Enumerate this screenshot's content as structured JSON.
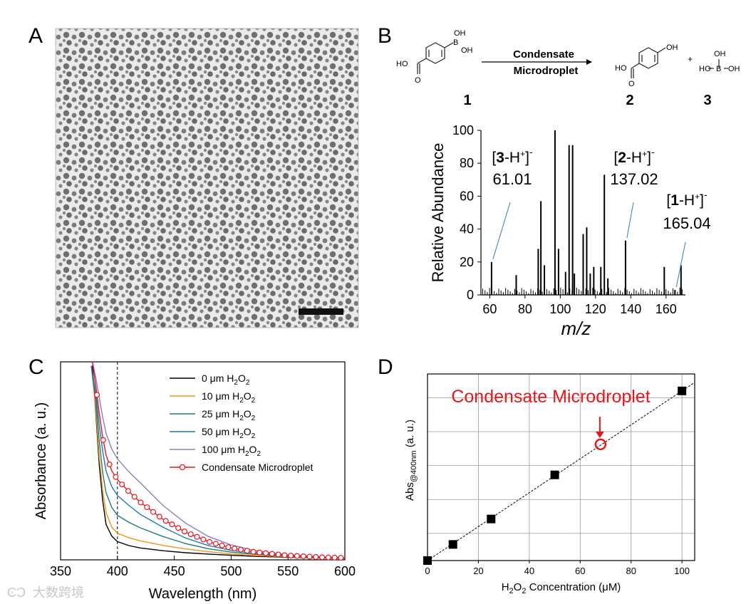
{
  "panel_labels": {
    "a": "A",
    "b": "B",
    "c": "C",
    "d": "D"
  },
  "panel_b": {
    "arrow_label_line1": "Condensate",
    "arrow_label_line2": "Microdroplet",
    "compound_numbers": [
      "1",
      "2",
      "3"
    ],
    "plus": "+",
    "structure_text": {
      "oh": "OH",
      "b": "B",
      "ho": "HO",
      "o": "O"
    }
  },
  "watermark": "大数跨境",
  "chart_data": [
    {
      "panel": "B",
      "type": "bar",
      "title": "",
      "xlabel": "m/z",
      "ylabel": "Relative Abundance",
      "xlim": [
        55,
        171
      ],
      "ylim": [
        0,
        100
      ],
      "xticks": [
        60,
        80,
        100,
        120,
        140,
        160
      ],
      "yticks": [
        0,
        20,
        40,
        60,
        80,
        100
      ],
      "peaks": [
        {
          "mz": 61.01,
          "value": 20
        },
        {
          "mz": 75,
          "value": 12
        },
        {
          "mz": 87.5,
          "value": 28
        },
        {
          "mz": 89,
          "value": 57
        },
        {
          "mz": 91,
          "value": 18
        },
        {
          "mz": 97,
          "value": 100
        },
        {
          "mz": 99,
          "value": 28
        },
        {
          "mz": 103,
          "value": 14
        },
        {
          "mz": 105,
          "value": 91
        },
        {
          "mz": 107,
          "value": 91
        },
        {
          "mz": 108,
          "value": 13
        },
        {
          "mz": 113,
          "value": 37
        },
        {
          "mz": 115,
          "value": 41
        },
        {
          "mz": 117,
          "value": 13
        },
        {
          "mz": 119,
          "value": 17
        },
        {
          "mz": 123,
          "value": 17
        },
        {
          "mz": 125,
          "value": 73
        },
        {
          "mz": 127,
          "value": 10
        },
        {
          "mz": 137.02,
          "value": 33
        },
        {
          "mz": 159,
          "value": 17
        },
        {
          "mz": 165.04,
          "value": 3
        },
        {
          "mz": 168.5,
          "value": 18
        }
      ],
      "annotations": [
        {
          "ion_number": "3",
          "ion_suffix": "-H",
          "charge_sup": "+",
          "close_bracket": "]",
          "minus": "-",
          "open_bracket": "[",
          "mz_text": "61.01",
          "mz": 61.01,
          "value": 20
        },
        {
          "ion_number": "2",
          "ion_suffix": "-H",
          "charge_sup": "+",
          "close_bracket": "]",
          "minus": "-",
          "open_bracket": "[",
          "mz_text": "137.02",
          "mz": 137.02,
          "value": 33
        },
        {
          "ion_number": "1",
          "ion_suffix": "-H",
          "charge_sup": "+",
          "close_bracket": "]",
          "minus": "-",
          "open_bracket": "[",
          "mz_text": "165.04",
          "mz": 165.04,
          "value": 3
        }
      ]
    },
    {
      "panel": "C",
      "type": "line",
      "title": "",
      "xlabel": "Wavelength (nm)",
      "ylabel": "Absorbance (a. u.)",
      "xlim": [
        350,
        600
      ],
      "ylim": [
        0,
        1
      ],
      "xticks": [
        350,
        400,
        450,
        500,
        550,
        600
      ],
      "vline": 400,
      "series": [
        {
          "name_main": "0 μm H",
          "name_sub": "2",
          "name_o": "O",
          "name_sub2": "2",
          "color": "#000000",
          "x": [
            378,
            381,
            384,
            387,
            390,
            395,
            400,
            410,
            420,
            440,
            460,
            480,
            500,
            520,
            550,
            580,
            600
          ],
          "y": [
            0.98,
            0.74,
            0.48,
            0.3,
            0.18,
            0.12,
            0.092,
            0.072,
            0.06,
            0.046,
            0.036,
            0.029,
            0.023,
            0.018,
            0.013,
            0.009,
            0.007
          ]
        },
        {
          "name_main": "10 μm H",
          "name_sub": "2",
          "name_o": "O",
          "name_sub2": "2",
          "color": "#f0941a",
          "x": [
            377,
            381,
            384,
            387,
            390,
            395,
            400,
            410,
            420,
            440,
            460,
            480,
            500,
            520,
            550,
            580,
            600
          ],
          "y": [
            0.98,
            0.76,
            0.52,
            0.35,
            0.24,
            0.165,
            0.135,
            0.112,
            0.096,
            0.073,
            0.055,
            0.041,
            0.03,
            0.022,
            0.015,
            0.01,
            0.008
          ]
        },
        {
          "name_main": "25 μm H",
          "name_sub": "2",
          "name_o": "O",
          "name_sub2": "2",
          "color": "#1f7a78",
          "x": [
            377,
            381,
            384,
            387,
            390,
            395,
            400,
            410,
            420,
            440,
            460,
            480,
            500,
            520,
            550,
            580,
            600
          ],
          "y": [
            0.98,
            0.8,
            0.6,
            0.44,
            0.34,
            0.265,
            0.225,
            0.19,
            0.162,
            0.118,
            0.082,
            0.056,
            0.039,
            0.028,
            0.018,
            0.012,
            0.009
          ]
        },
        {
          "name_main": "50 μm H",
          "name_sub": "2",
          "name_o": "O",
          "name_sub2": "2",
          "color": "#1f78b4",
          "x": [
            377,
            381,
            384,
            387,
            390,
            395,
            400,
            410,
            420,
            440,
            460,
            480,
            500,
            520,
            550,
            580,
            600
          ],
          "y": [
            0.98,
            0.84,
            0.68,
            0.55,
            0.45,
            0.37,
            0.325,
            0.275,
            0.23,
            0.165,
            0.11,
            0.072,
            0.048,
            0.033,
            0.02,
            0.013,
            0.01
          ]
        },
        {
          "name_main": "100 μm H",
          "name_sub": "2",
          "name_o": "O",
          "name_sub2": "2",
          "color": "#8e7cc3",
          "x": [
            378,
            381,
            384,
            387,
            390,
            395,
            400,
            410,
            420,
            440,
            460,
            480,
            500,
            520,
            550,
            580,
            600
          ],
          "y": [
            1.0,
            0.92,
            0.82,
            0.72,
            0.64,
            0.56,
            0.51,
            0.445,
            0.39,
            0.275,
            0.185,
            0.118,
            0.075,
            0.048,
            0.026,
            0.015,
            0.011
          ]
        },
        {
          "name": "Condensate Microdroplet",
          "color": "#e8161d",
          "markers": true,
          "x": [
            378,
            381,
            384,
            387,
            390,
            395,
            400,
            410,
            420,
            440,
            460,
            480,
            500,
            520,
            550,
            580,
            600
          ],
          "y": [
            1.0,
            0.88,
            0.74,
            0.62,
            0.53,
            0.45,
            0.405,
            0.345,
            0.292,
            0.205,
            0.14,
            0.092,
            0.06,
            0.04,
            0.022,
            0.013,
            0.01
          ]
        }
      ]
    },
    {
      "panel": "D",
      "type": "scatter",
      "title": "",
      "xlabel_main": "H",
      "xlabel_sub": "2",
      "xlabel_o": "O",
      "xlabel_sub2": "2",
      "xlabel_rest": " Concentration (μM)",
      "ylabel_main": "Abs",
      "ylabel_sub": "@400nm",
      "ylabel_rest": " (a. u.)",
      "xlim": [
        0,
        105
      ],
      "ylim": [
        0,
        1.1
      ],
      "xticks": [
        0,
        20,
        40,
        60,
        80,
        100
      ],
      "annotation": "Condensate Microdroplet",
      "points": [
        {
          "x": 0,
          "y": 0.0
        },
        {
          "x": 10,
          "y": 0.095
        },
        {
          "x": 25,
          "y": 0.245
        },
        {
          "x": 50,
          "y": 0.505
        },
        {
          "x": 100,
          "y": 1.0
        }
      ],
      "highlight": {
        "x": 68,
        "y": 0.685
      },
      "fit": {
        "x0": 0,
        "y0": 0.0,
        "x1": 105,
        "y1": 1.05
      }
    }
  ]
}
